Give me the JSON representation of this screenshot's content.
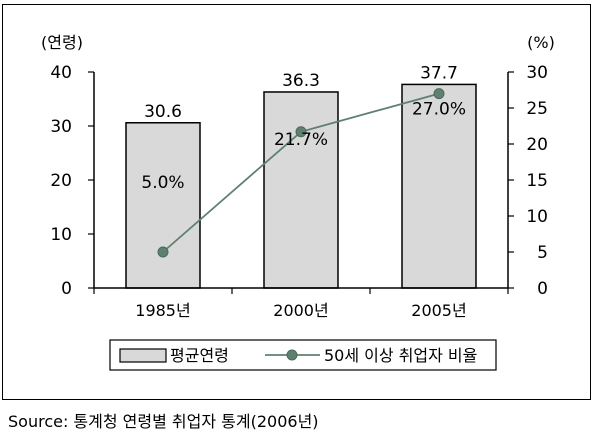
{
  "chart_data": {
    "type": "bar",
    "categories": [
      "1985년",
      "2000년",
      "2005년"
    ],
    "series": [
      {
        "name": "평균연령",
        "type": "bar",
        "axis": "left",
        "values": [
          30.6,
          36.3,
          37.7
        ],
        "color": "#d9d9d9"
      },
      {
        "name": "50세 이상 취업자 비율",
        "type": "line",
        "axis": "right",
        "values": [
          5.0,
          21.7,
          27.0
        ],
        "color": "#5f8070"
      }
    ],
    "bar_labels": [
      "30.6",
      "36.3",
      "37.7"
    ],
    "line_labels": [
      "5.0%",
      "21.7%",
      "27.0%"
    ],
    "ylabel_left": "(연령)",
    "ylabel_right": "(%)",
    "ylim_left": [
      0,
      40
    ],
    "ylim_right": [
      0,
      30
    ],
    "yticks_left": [
      0,
      10,
      20,
      30,
      40
    ],
    "yticks_right": [
      0,
      5,
      10,
      15,
      20,
      25,
      30
    ],
    "grid": false,
    "legend_position": "bottom"
  },
  "source_text": "Source: 통계청 연령별 취업자 통계(2006년)"
}
